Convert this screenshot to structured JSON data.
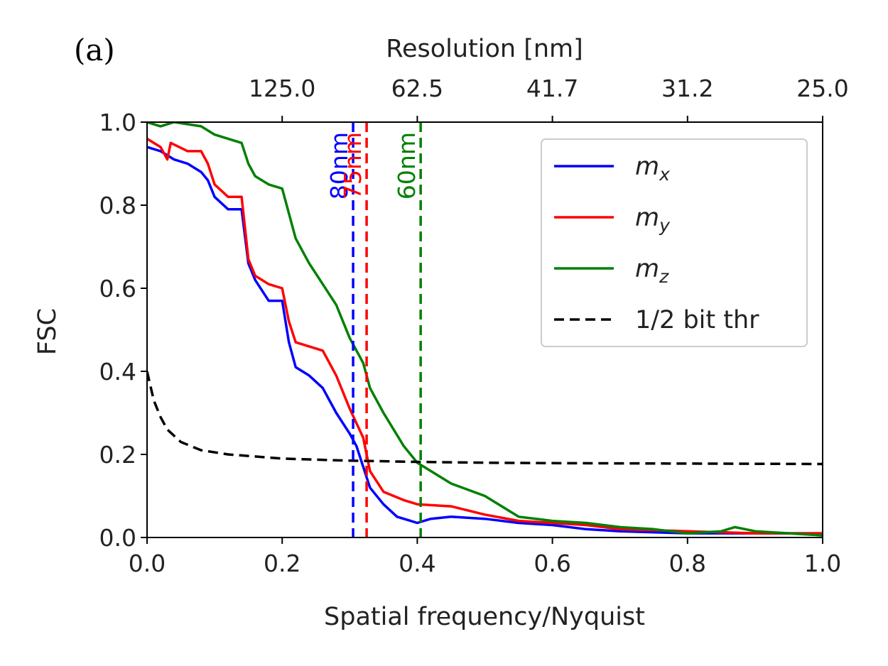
{
  "panel_label": "(a)",
  "chart_data": {
    "type": "line",
    "title": "",
    "xlabel": "Spatial frequency/Nyquist",
    "ylabel": "FSC",
    "top_xlabel": "Resolution [nm]",
    "xlim": [
      0.0,
      1.0
    ],
    "ylim": [
      0.0,
      1.0
    ],
    "x_ticks": [
      0.0,
      0.2,
      0.4,
      0.6,
      0.8,
      1.0
    ],
    "x_tick_labels": [
      "0.0",
      "0.2",
      "0.4",
      "0.6",
      "0.8",
      "1.0"
    ],
    "y_ticks": [
      0.0,
      0.2,
      0.4,
      0.6,
      0.8,
      1.0
    ],
    "y_tick_labels": [
      "0.0",
      "0.2",
      "0.4",
      "0.6",
      "0.8",
      "1.0"
    ],
    "top_ticks": [
      0.2,
      0.4,
      0.6,
      0.8,
      1.0
    ],
    "top_tick_labels": [
      "125.0",
      "62.5",
      "41.7",
      "31.2",
      "25.0"
    ],
    "grid": false,
    "legend_position": "top-right",
    "legend": [
      {
        "base": "m",
        "sub": "x",
        "color": "#0000ff",
        "dashed": false
      },
      {
        "base": "m",
        "sub": "y",
        "color": "#ff0000",
        "dashed": false
      },
      {
        "base": "m",
        "sub": "z",
        "color": "#008000",
        "dashed": false
      },
      {
        "label": "1/2 bit thr",
        "color": "#000000",
        "dashed": true
      }
    ],
    "series": [
      {
        "name": "m_x",
        "color": "#0000ff",
        "x": [
          0.0,
          0.02,
          0.04,
          0.06,
          0.08,
          0.09,
          0.1,
          0.12,
          0.14,
          0.15,
          0.16,
          0.18,
          0.2,
          0.21,
          0.22,
          0.24,
          0.26,
          0.28,
          0.3,
          0.31,
          0.32,
          0.33,
          0.35,
          0.37,
          0.39,
          0.4,
          0.42,
          0.45,
          0.5,
          0.55,
          0.6,
          0.65,
          0.7,
          0.8,
          0.9,
          1.0
        ],
        "y": [
          0.94,
          0.93,
          0.91,
          0.9,
          0.88,
          0.86,
          0.82,
          0.79,
          0.79,
          0.66,
          0.62,
          0.57,
          0.57,
          0.47,
          0.41,
          0.39,
          0.36,
          0.3,
          0.25,
          0.22,
          0.17,
          0.12,
          0.08,
          0.05,
          0.04,
          0.035,
          0.045,
          0.05,
          0.045,
          0.035,
          0.03,
          0.02,
          0.015,
          0.01,
          0.01,
          0.01
        ]
      },
      {
        "name": "m_y",
        "color": "#ff0000",
        "x": [
          0.0,
          0.02,
          0.03,
          0.035,
          0.06,
          0.08,
          0.09,
          0.1,
          0.12,
          0.14,
          0.15,
          0.16,
          0.18,
          0.2,
          0.21,
          0.22,
          0.24,
          0.26,
          0.28,
          0.3,
          0.32,
          0.33,
          0.35,
          0.38,
          0.4,
          0.45,
          0.5,
          0.55,
          0.6,
          0.65,
          0.7,
          0.8,
          0.9,
          1.0
        ],
        "y": [
          0.96,
          0.94,
          0.91,
          0.95,
          0.93,
          0.93,
          0.9,
          0.85,
          0.82,
          0.82,
          0.67,
          0.63,
          0.61,
          0.6,
          0.52,
          0.47,
          0.46,
          0.45,
          0.39,
          0.31,
          0.24,
          0.16,
          0.11,
          0.09,
          0.08,
          0.075,
          0.055,
          0.04,
          0.035,
          0.03,
          0.02,
          0.015,
          0.01,
          0.01
        ]
      },
      {
        "name": "m_z",
        "color": "#008000",
        "x": [
          0.0,
          0.02,
          0.04,
          0.06,
          0.08,
          0.1,
          0.12,
          0.14,
          0.15,
          0.16,
          0.18,
          0.2,
          0.22,
          0.24,
          0.26,
          0.28,
          0.3,
          0.32,
          0.33,
          0.35,
          0.38,
          0.4,
          0.42,
          0.45,
          0.5,
          0.55,
          0.6,
          0.65,
          0.7,
          0.75,
          0.8,
          0.85,
          0.87,
          0.9,
          0.95,
          1.0
        ],
        "y": [
          1.0,
          0.99,
          1.0,
          0.995,
          0.99,
          0.97,
          0.96,
          0.95,
          0.9,
          0.87,
          0.85,
          0.84,
          0.72,
          0.66,
          0.61,
          0.56,
          0.48,
          0.42,
          0.36,
          0.3,
          0.22,
          0.18,
          0.16,
          0.13,
          0.1,
          0.05,
          0.04,
          0.035,
          0.025,
          0.02,
          0.01,
          0.015,
          0.025,
          0.015,
          0.01,
          0.005
        ]
      },
      {
        "name": "1/2 bit thr",
        "color": "#000000",
        "dashed": true,
        "x": [
          0.0,
          0.01,
          0.02,
          0.03,
          0.05,
          0.08,
          0.12,
          0.16,
          0.2,
          0.3,
          0.4,
          0.5,
          0.6,
          0.8,
          1.0
        ],
        "y": [
          0.4,
          0.33,
          0.29,
          0.26,
          0.23,
          0.21,
          0.2,
          0.195,
          0.19,
          0.185,
          0.182,
          0.18,
          0.179,
          0.178,
          0.177
        ]
      }
    ],
    "vlines": [
      {
        "x": 0.305,
        "label": "80nm",
        "color": "#0000ff"
      },
      {
        "x": 0.325,
        "label": "75nm",
        "color": "#ff0000"
      },
      {
        "x": 0.405,
        "label": "60nm",
        "color": "#008000"
      }
    ]
  }
}
